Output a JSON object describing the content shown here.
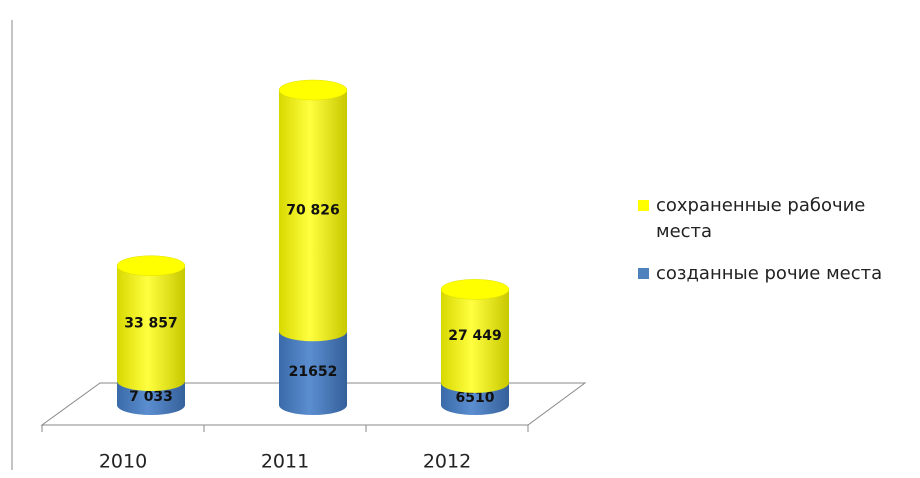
{
  "chart_data": {
    "type": "bar3d-stacked",
    "categories": [
      "2010",
      "2011",
      "2012"
    ],
    "series": [
      {
        "name": "созданные рочие места",
        "color": "#4f81bd",
        "values": [
          7033,
          21652,
          6510
        ],
        "value_labels": [
          "7 033",
          "21652",
          "6510"
        ]
      },
      {
        "name": "сохраненные рабочие места",
        "color": "#ffff00",
        "values": [
          33857,
          70826,
          27449
        ],
        "value_labels": [
          "33 857",
          "70 826",
          "27 449"
        ]
      }
    ]
  }
}
